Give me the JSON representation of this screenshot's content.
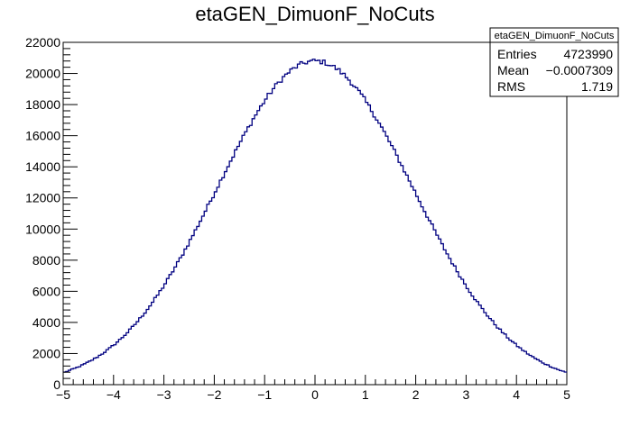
{
  "chart_data": {
    "type": "histogram",
    "title": "etaGEN_DimuonF_NoCuts",
    "xlabel": "",
    "ylabel": "",
    "xlim": [
      -5,
      5
    ],
    "ylim": [
      0,
      22000
    ],
    "x_ticks": [
      "−5",
      "−4",
      "−3",
      "−2",
      "−1",
      "0",
      "1",
      "2",
      "3",
      "4",
      "5"
    ],
    "y_ticks": [
      "0",
      "2000",
      "4000",
      "6000",
      "8000",
      "10000",
      "12000",
      "14000",
      "16000",
      "18000",
      "20000",
      "22000"
    ],
    "grid": false,
    "line_color": "#000080",
    "bins": 200,
    "distribution_shape": {
      "peak_x": 0.0,
      "peak_y": 20800,
      "sigma": 1.95,
      "y_at_x_minus5": 300,
      "y_at_x_plus5": 300
    },
    "stats_box": {
      "title": "etaGEN_DimuonF_NoCuts",
      "entries_label": "Entries",
      "entries_value": "4723990",
      "mean_label": "Mean",
      "mean_value": "−0.0007309",
      "rms_label": "RMS",
      "rms_value": "1.719"
    }
  }
}
